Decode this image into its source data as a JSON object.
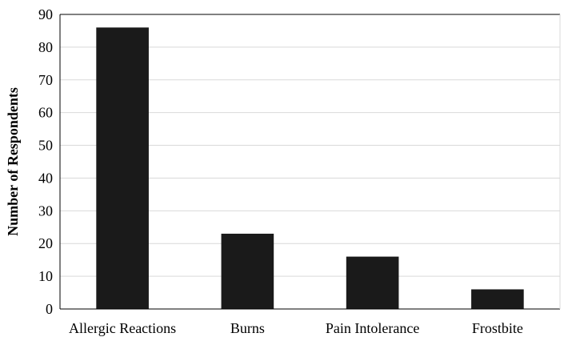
{
  "chart_data": {
    "type": "bar",
    "title": "",
    "xlabel": "",
    "ylabel": "Number of Respondents",
    "categories": [
      "Allergic Reactions",
      "Burns",
      "Pain Intolerance",
      "Frostbite"
    ],
    "values": [
      86,
      23,
      16,
      6
    ],
    "ylim": [
      0,
      90
    ],
    "yticks": [
      0,
      10,
      20,
      30,
      40,
      50,
      60,
      70,
      80,
      90
    ],
    "grid": true,
    "legend": "none",
    "colors": {
      "bar": "#1a1a1a",
      "grid": "#d9d9d9",
      "axis": "#000000"
    }
  }
}
